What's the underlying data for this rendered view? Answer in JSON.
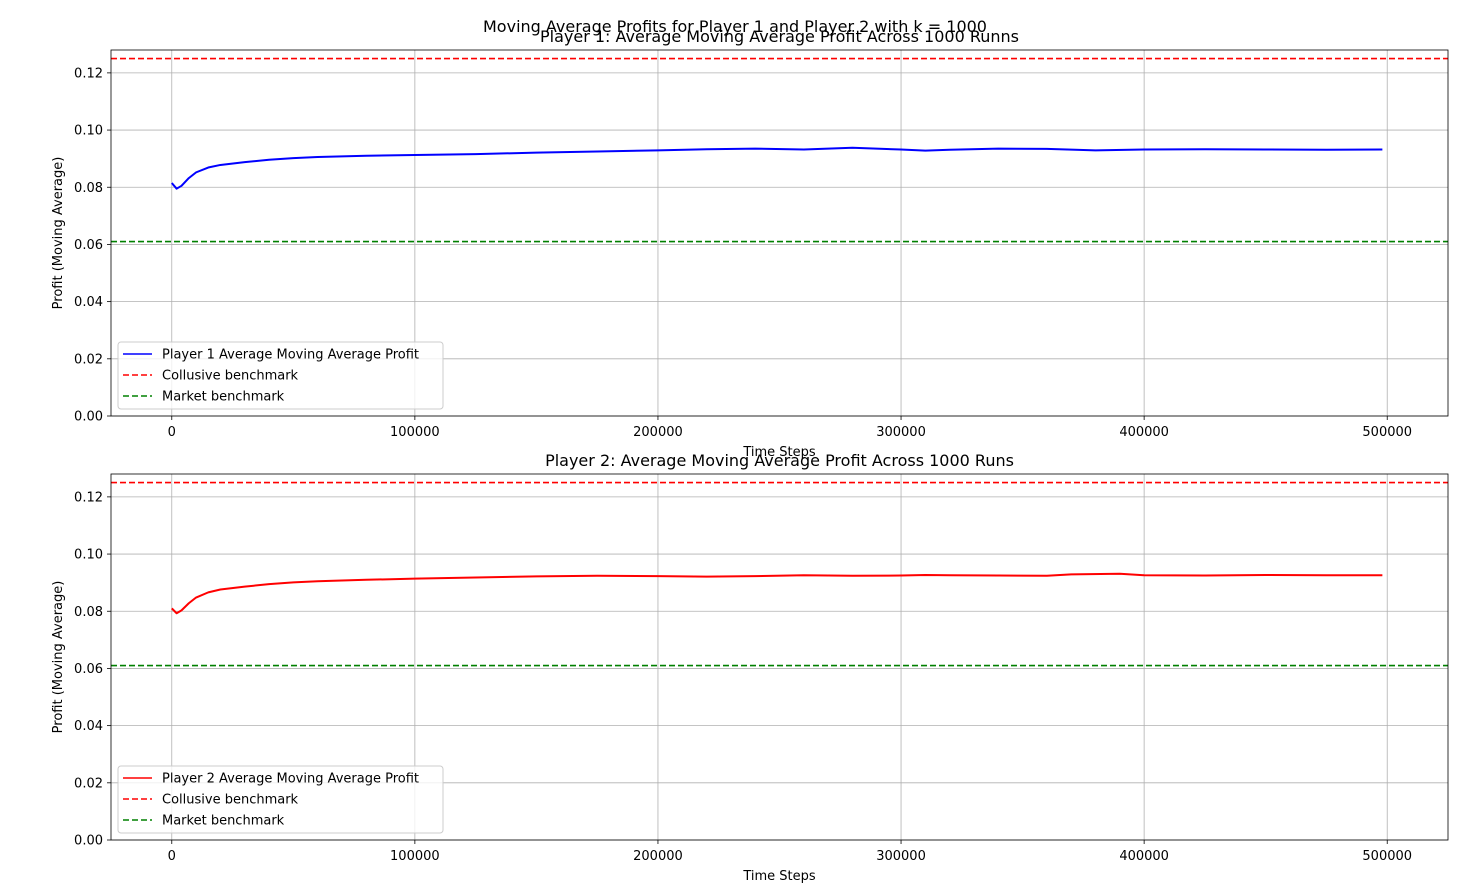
{
  "figure": {
    "suptitle": "Moving Average Profits for Player 1 and Player 2 with k = 1000"
  },
  "chart_data": [
    {
      "type": "line",
      "title": "Player 1: Average Moving Average Profit Across 1000 Runns",
      "xlabel": "Time Steps",
      "ylabel": "Profit (Moving Average)",
      "xlim": [
        -25000,
        525000
      ],
      "ylim": [
        0.0,
        0.128
      ],
      "xticks": [
        0,
        100000,
        200000,
        300000,
        400000,
        500000
      ],
      "yticks": [
        0.0,
        0.02,
        0.04,
        0.06,
        0.08,
        0.1,
        0.12
      ],
      "xtick_labels": [
        "0",
        "100000",
        "200000",
        "300000",
        "400000",
        "500000"
      ],
      "ytick_labels": [
        "0.00",
        "0.02",
        "0.04",
        "0.06",
        "0.08",
        "0.10",
        "0.12"
      ],
      "grid": true,
      "legend_position": "lower-left",
      "series": [
        {
          "name": "Player 1 Average Moving Average Profit",
          "color": "#0000ff",
          "style": "solid",
          "x": [
            0,
            2000,
            4000,
            7000,
            10000,
            15000,
            20000,
            30000,
            40000,
            50000,
            60000,
            80000,
            100000,
            125000,
            150000,
            175000,
            200000,
            220000,
            240000,
            260000,
            280000,
            300000,
            310000,
            320000,
            340000,
            360000,
            380000,
            400000,
            425000,
            450000,
            475000,
            498000
          ],
          "y": [
            0.0815,
            0.0795,
            0.0805,
            0.0832,
            0.0852,
            0.0869,
            0.0878,
            0.0888,
            0.0896,
            0.0902,
            0.0906,
            0.091,
            0.0913,
            0.0916,
            0.0921,
            0.0925,
            0.0929,
            0.0933,
            0.0935,
            0.0932,
            0.0938,
            0.0932,
            0.0928,
            0.0931,
            0.0935,
            0.0934,
            0.0929,
            0.0932,
            0.0933,
            0.0932,
            0.0931,
            0.0932
          ]
        },
        {
          "name": "Collusive benchmark",
          "color": "#ff0000",
          "style": "dashed",
          "value": 0.125
        },
        {
          "name": "Market benchmark",
          "color": "#008000",
          "style": "dashed",
          "value": 0.061
        }
      ]
    },
    {
      "type": "line",
      "title": "Player 2: Average Moving Average Profit Across 1000 Runs",
      "xlabel": "Time Steps",
      "ylabel": "Profit (Moving Average)",
      "xlim": [
        -25000,
        525000
      ],
      "ylim": [
        0.0,
        0.128
      ],
      "xticks": [
        0,
        100000,
        200000,
        300000,
        400000,
        500000
      ],
      "yticks": [
        0.0,
        0.02,
        0.04,
        0.06,
        0.08,
        0.1,
        0.12
      ],
      "xtick_labels": [
        "0",
        "100000",
        "200000",
        "300000",
        "400000",
        "500000"
      ],
      "ytick_labels": [
        "0.00",
        "0.02",
        "0.04",
        "0.06",
        "0.08",
        "0.10",
        "0.12"
      ],
      "grid": true,
      "legend_position": "lower-left",
      "series": [
        {
          "name": "Player 2 Average Moving Average Profit",
          "color": "#ff0000",
          "style": "solid",
          "x": [
            0,
            2000,
            4000,
            7000,
            10000,
            15000,
            20000,
            30000,
            40000,
            50000,
            60000,
            80000,
            100000,
            125000,
            150000,
            175000,
            200000,
            220000,
            240000,
            260000,
            280000,
            300000,
            310000,
            320000,
            340000,
            360000,
            370000,
            390000,
            400000,
            425000,
            450000,
            475000,
            498000
          ],
          "y": [
            0.081,
            0.0793,
            0.0803,
            0.0828,
            0.0848,
            0.0866,
            0.0876,
            0.0886,
            0.0895,
            0.0901,
            0.0905,
            0.091,
            0.0914,
            0.0918,
            0.0922,
            0.0924,
            0.0923,
            0.0921,
            0.0923,
            0.0926,
            0.0924,
            0.0925,
            0.0927,
            0.0926,
            0.0925,
            0.0924,
            0.0929,
            0.0931,
            0.0926,
            0.0925,
            0.0927,
            0.0926,
            0.0926
          ]
        },
        {
          "name": "Collusive benchmark",
          "color": "#ff0000",
          "style": "dashed",
          "value": 0.125
        },
        {
          "name": "Market benchmark",
          "color": "#008000",
          "style": "dashed",
          "value": 0.061
        }
      ]
    }
  ]
}
